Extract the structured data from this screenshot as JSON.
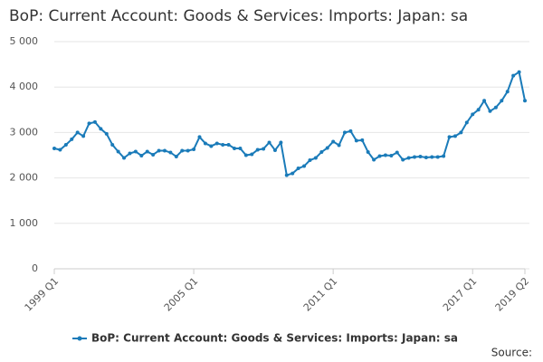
{
  "chart_data": {
    "type": "line",
    "title": "BoP: Current Account: Goods & Services: Imports: Japan: sa",
    "categories": [
      "1999 Q1",
      null,
      null,
      null,
      null,
      null,
      null,
      null,
      null,
      null,
      null,
      null,
      null,
      null,
      null,
      null,
      null,
      null,
      null,
      null,
      null,
      null,
      null,
      null,
      "2005 Q1",
      null,
      null,
      null,
      null,
      null,
      null,
      null,
      null,
      null,
      null,
      null,
      null,
      null,
      null,
      null,
      null,
      null,
      null,
      null,
      null,
      null,
      null,
      null,
      "2011 Q1",
      null,
      null,
      null,
      null,
      null,
      null,
      null,
      null,
      null,
      null,
      null,
      null,
      null,
      null,
      null,
      null,
      null,
      null,
      null,
      null,
      null,
      null,
      null,
      "2017 Q1",
      null,
      null,
      null,
      null,
      null,
      null,
      null,
      null,
      "2019 Q2"
    ],
    "series": [
      {
        "name": "BoP: Current Account: Goods & Services: Imports: Japan: sa",
        "color": "#1a7bb9",
        "values": [
          2650,
          2620,
          2730,
          2850,
          3000,
          2920,
          3200,
          3230,
          3080,
          2970,
          2730,
          2580,
          2440,
          2540,
          2580,
          2490,
          2580,
          2510,
          2600,
          2600,
          2560,
          2470,
          2600,
          2600,
          2630,
          2900,
          2760,
          2700,
          2760,
          2730,
          2730,
          2650,
          2650,
          2500,
          2520,
          2620,
          2640,
          2780,
          2610,
          2780,
          2060,
          2100,
          2210,
          2260,
          2390,
          2440,
          2570,
          2660,
          2800,
          2720,
          3000,
          3030,
          2820,
          2830,
          2570,
          2400,
          2480,
          2500,
          2490,
          2560,
          2400,
          2440,
          2460,
          2470,
          2450,
          2460,
          2460,
          2480,
          2900,
          2920,
          3000,
          3220,
          3400,
          3500,
          3700,
          3470,
          3550,
          3700,
          3900,
          4250,
          4330,
          3700
        ]
      }
    ],
    "ylim": [
      0,
      5000
    ],
    "yticks": [
      0,
      {
        "value": 1000,
        "label": "1 000"
      },
      {
        "value": 2000,
        "label": "2 000"
      },
      {
        "value": 3000,
        "label": "3 000"
      },
      {
        "value": 4000,
        "label": "4 000"
      },
      {
        "value": 5000,
        "label": "5 000"
      }
    ],
    "grid": true,
    "legend": "bottom",
    "source": "Source:"
  }
}
